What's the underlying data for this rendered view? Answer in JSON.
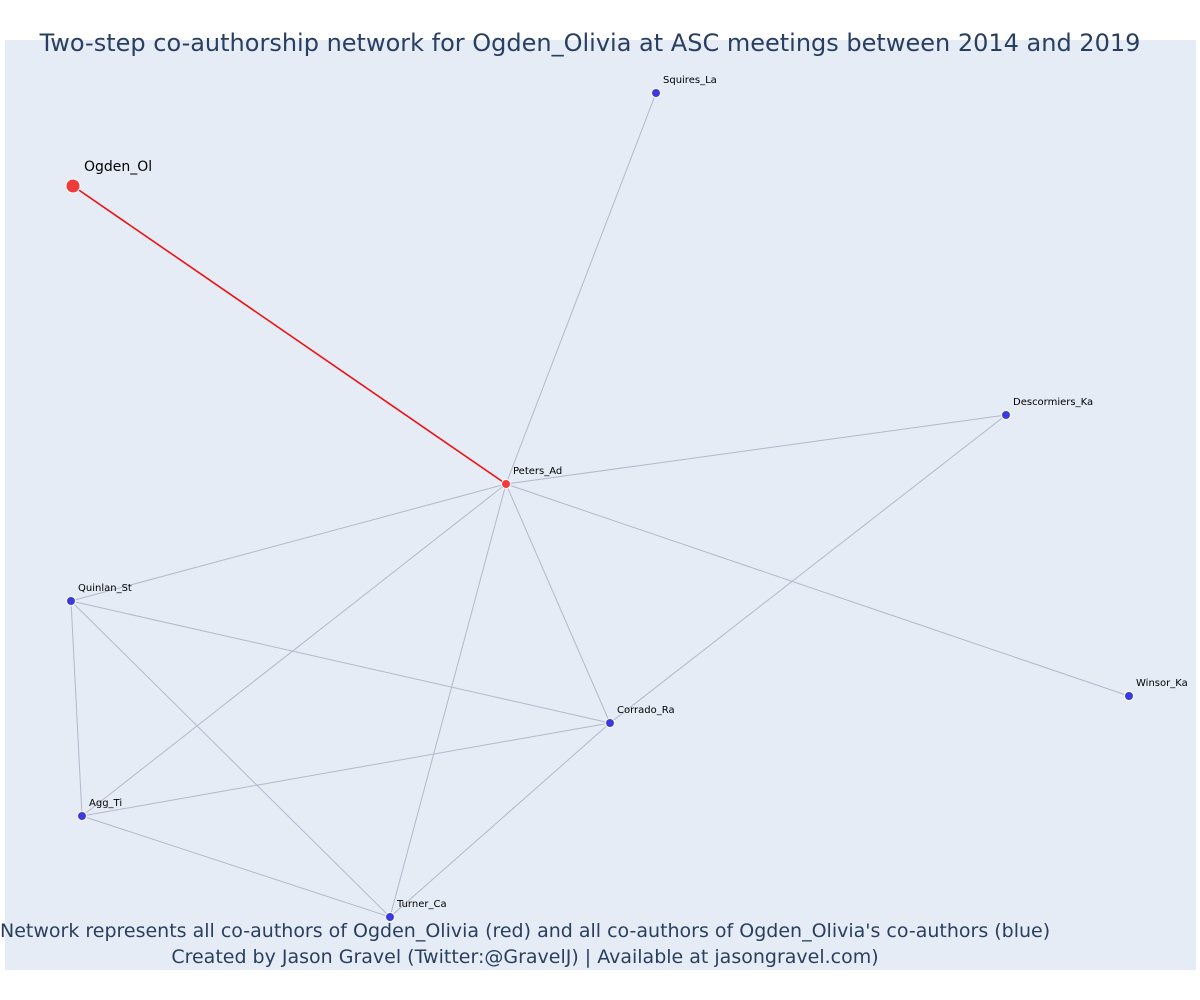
{
  "title": "Two-step co-authorship network for Ogden_Olivia at ASC meetings between 2014 and 2019",
  "footer": {
    "line1": "Network represents all co-authors of Ogden_Olivia (red) and all co-authors of Ogden_Olivia's co-authors (blue)",
    "line2": "Created by Jason Gravel (Twitter:@GravelJ) | Available at jasongravel.com)"
  },
  "colors": {
    "background": "#e5ecf6",
    "focal": "#ef3b3b",
    "coauthor": "#ef3b3b",
    "second_step": "#3b3bdd",
    "focal_edge": "#ee1111",
    "edge": "#b4b8cb",
    "text": "#2a3f5f"
  },
  "nodes": [
    {
      "id": "Ogden_Ol",
      "label": "Ogden_Ol",
      "group": "focal"
    },
    {
      "id": "Peters_Ad",
      "label": "Peters_Ad",
      "group": "coauthor"
    },
    {
      "id": "Squires_La",
      "label": "Squires_La",
      "group": "second_step"
    },
    {
      "id": "Descormiers_Ka",
      "label": "Descormiers_Ka",
      "group": "second_step"
    },
    {
      "id": "Quinlan_St",
      "label": "Quinlan_St",
      "group": "second_step"
    },
    {
      "id": "Winsor_Ka",
      "label": "Winsor_Ka",
      "group": "second_step"
    },
    {
      "id": "Corrado_Ra",
      "label": "Corrado_Ra",
      "group": "second_step"
    },
    {
      "id": "Agg_Ti",
      "label": "Agg_Ti",
      "group": "second_step"
    },
    {
      "id": "Turner_Ca",
      "label": "Turner_Ca",
      "group": "second_step"
    }
  ],
  "edges": [
    {
      "source": "Ogden_Ol",
      "target": "Peters_Ad",
      "focal": true
    },
    {
      "source": "Peters_Ad",
      "target": "Squires_La"
    },
    {
      "source": "Peters_Ad",
      "target": "Descormiers_Ka"
    },
    {
      "source": "Peters_Ad",
      "target": "Quinlan_St"
    },
    {
      "source": "Peters_Ad",
      "target": "Winsor_Ka"
    },
    {
      "source": "Peters_Ad",
      "target": "Corrado_Ra"
    },
    {
      "source": "Peters_Ad",
      "target": "Agg_Ti"
    },
    {
      "source": "Peters_Ad",
      "target": "Turner_Ca"
    },
    {
      "source": "Descormiers_Ka",
      "target": "Corrado_Ra"
    },
    {
      "source": "Quinlan_St",
      "target": "Corrado_Ra"
    },
    {
      "source": "Quinlan_St",
      "target": "Agg_Ti"
    },
    {
      "source": "Quinlan_St",
      "target": "Turner_Ca"
    },
    {
      "source": "Corrado_Ra",
      "target": "Agg_Ti"
    },
    {
      "source": "Corrado_Ra",
      "target": "Turner_Ca"
    },
    {
      "source": "Agg_Ti",
      "target": "Turner_Ca"
    }
  ]
}
